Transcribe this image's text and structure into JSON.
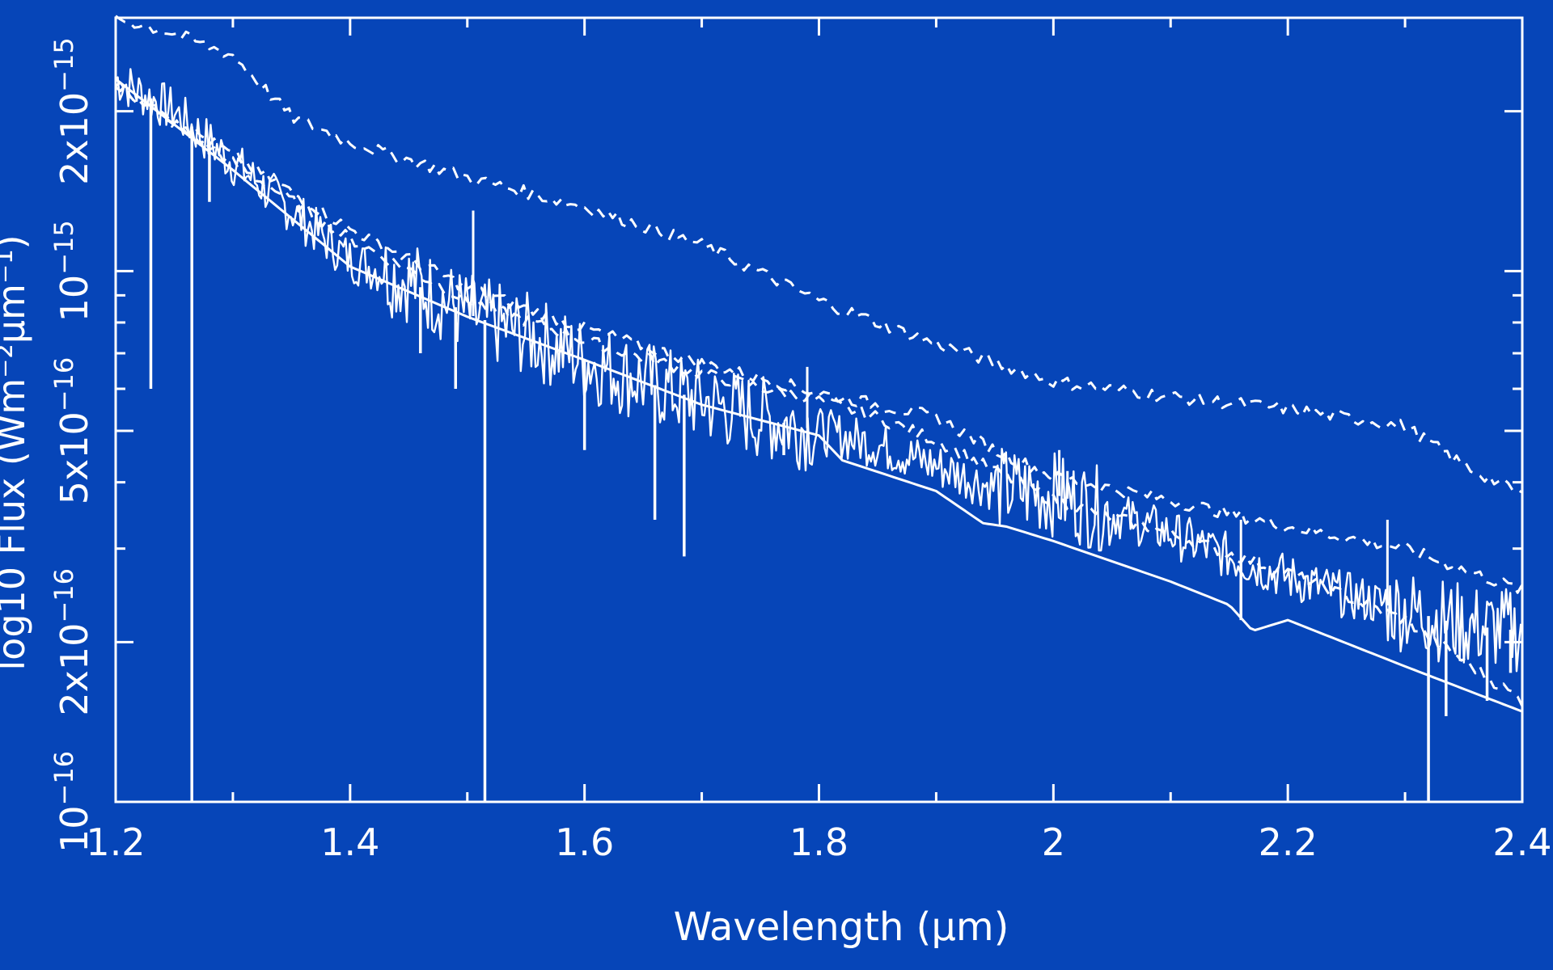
{
  "chart_data": {
    "type": "line",
    "title": "",
    "xlabel": "Wavelength (µm)",
    "ylabel": "log10 Flux (Wm⁻²µm⁻¹)",
    "xlim": [
      1.2,
      2.4
    ],
    "ylim": [
      1e-16,
      3e-15
    ],
    "yscale": "log",
    "grid": false,
    "background_color": "#0645b8",
    "line_color": "#ffffff",
    "x_ticks": [
      "1.2",
      "1.4",
      "1.6",
      "1.8",
      "2",
      "2.2",
      "2.4"
    ],
    "y_ticks": [
      {
        "value": 1e-16,
        "mant": "10",
        "exp": "−16"
      },
      {
        "value": 2e-16,
        "mant": "2x10",
        "exp": "−16"
      },
      {
        "value": 5e-16,
        "mant": "5x10",
        "exp": "−16"
      },
      {
        "value": 1e-15,
        "mant": "10",
        "exp": "−15"
      },
      {
        "value": 2e-15,
        "mant": "2x10",
        "exp": "−15"
      }
    ],
    "series": [
      {
        "style": "solid",
        "noise": "high",
        "x": [
          1.2,
          1.25,
          1.3,
          1.35,
          1.4,
          1.45,
          1.5,
          1.55,
          1.6,
          1.65,
          1.7,
          1.75,
          1.8,
          1.85,
          1.9,
          1.95,
          2.0,
          2.05,
          2.1,
          2.15,
          2.2,
          2.25,
          2.3,
          2.35,
          2.4
        ],
        "y": [
          2.3e-15,
          2e-15,
          1.6e-15,
          1.3e-15,
          1.05e-15,
          9.6e-16,
          8.3e-16,
          7.6e-16,
          6.8e-16,
          6.2e-16,
          5.7e-16,
          5.3e-16,
          5e-16,
          4.7e-16,
          4.3e-16,
          3.9e-16,
          3.8e-16,
          3.5e-16,
          3.2e-16,
          2.9e-16,
          2.65e-16,
          2.45e-16,
          2.3e-16,
          2.15e-16,
          2.1e-16
        ]
      },
      {
        "style": "solid",
        "noise": "none",
        "x": [
          1.2,
          1.3,
          1.4,
          1.5,
          1.6,
          1.7,
          1.8,
          1.82,
          1.9,
          1.94,
          1.96,
          2.0,
          2.1,
          2.15,
          2.17,
          2.2,
          2.3,
          2.4
        ],
        "y": [
          2.3e-15,
          1.55e-15,
          1.02e-15,
          8.2e-16,
          6.8e-16,
          5.6e-16,
          4.9e-16,
          4.4e-16,
          3.85e-16,
          3.35e-16,
          3.3e-16,
          3.1e-16,
          2.6e-16,
          2.35e-16,
          2.1e-16,
          2.2e-16,
          1.8e-16,
          1.48e-16
        ]
      },
      {
        "style": "dashed",
        "noise": "low",
        "x": [
          1.2,
          1.3,
          1.4,
          1.5,
          1.6,
          1.7,
          1.8,
          1.85,
          1.9,
          1.95,
          2.0,
          2.1,
          2.2,
          2.3,
          2.4
        ],
        "y": [
          2.25e-15,
          1.6e-15,
          1.15e-15,
          8.8e-16,
          7.4e-16,
          6.4e-16,
          5.7e-16,
          5.3e-16,
          4.8e-16,
          4.2e-16,
          3.7e-16,
          3.2e-16,
          2.7e-16,
          2.2e-16,
          1.55e-16
        ]
      },
      {
        "style": "dashed",
        "noise": "low",
        "x": [
          1.2,
          1.3,
          1.4,
          1.5,
          1.6,
          1.7,
          1.8,
          1.85,
          1.9,
          1.95,
          2.0,
          2.1,
          2.2,
          2.3,
          2.4
        ],
        "y": [
          2.25e-15,
          1.65e-15,
          1.2e-15,
          9.3e-16,
          7.8e-16,
          6.7e-16,
          5.9e-16,
          5.6e-16,
          5.3e-16,
          4.6e-16,
          4.1e-16,
          3.7e-16,
          3.3e-16,
          3e-16,
          2.5e-16
        ]
      },
      {
        "style": "dashed",
        "noise": "low",
        "x": [
          1.2,
          1.25,
          1.3,
          1.35,
          1.4,
          1.5,
          1.6,
          1.7,
          1.8,
          1.85,
          1.9,
          2.0,
          2.1,
          2.2,
          2.3,
          2.35,
          2.4
        ],
        "y": [
          3e-15,
          2.8e-15,
          2.55e-15,
          1.95e-15,
          1.75e-15,
          1.5e-15,
          1.32e-15,
          1.12e-15,
          8.8e-16,
          8e-16,
          7.3e-16,
          6.2e-16,
          5.8e-16,
          5.5e-16,
          5.1e-16,
          4.3e-16,
          3.8e-16
        ]
      }
    ],
    "spikes": [
      {
        "x": 1.23,
        "y": 6e-16
      },
      {
        "x": 1.265,
        "y": 1e-16
      },
      {
        "x": 1.28,
        "y": 1.35e-15
      },
      {
        "x": 1.46,
        "y": 7e-16
      },
      {
        "x": 1.49,
        "y": 6e-16
      },
      {
        "x": 1.515,
        "y": 1e-16
      },
      {
        "x": 1.6,
        "y": 4.6e-16
      },
      {
        "x": 1.66,
        "y": 3.4e-16
      },
      {
        "x": 1.685,
        "y": 2.9e-16
      },
      {
        "x": 1.77,
        "y": 4.5e-16
      },
      {
        "x": 2.16,
        "y": 2.2e-16
      },
      {
        "x": 2.32,
        "y": 1e-16
      },
      {
        "x": 2.335,
        "y": 1.45e-16
      },
      {
        "x": 2.37,
        "y": 1.55e-16
      },
      {
        "x": 2.39,
        "y": 1.75e-16
      }
    ],
    "peaks": [
      {
        "x": 1.505,
        "y": 1.3e-15
      },
      {
        "x": 1.79,
        "y": 6.6e-16
      },
      {
        "x": 2.005,
        "y": 4.6e-16
      },
      {
        "x": 2.012,
        "y": 4.2e-16
      },
      {
        "x": 2.16,
        "y": 3.4e-16
      },
      {
        "x": 2.285,
        "y": 3.4e-16
      }
    ]
  }
}
